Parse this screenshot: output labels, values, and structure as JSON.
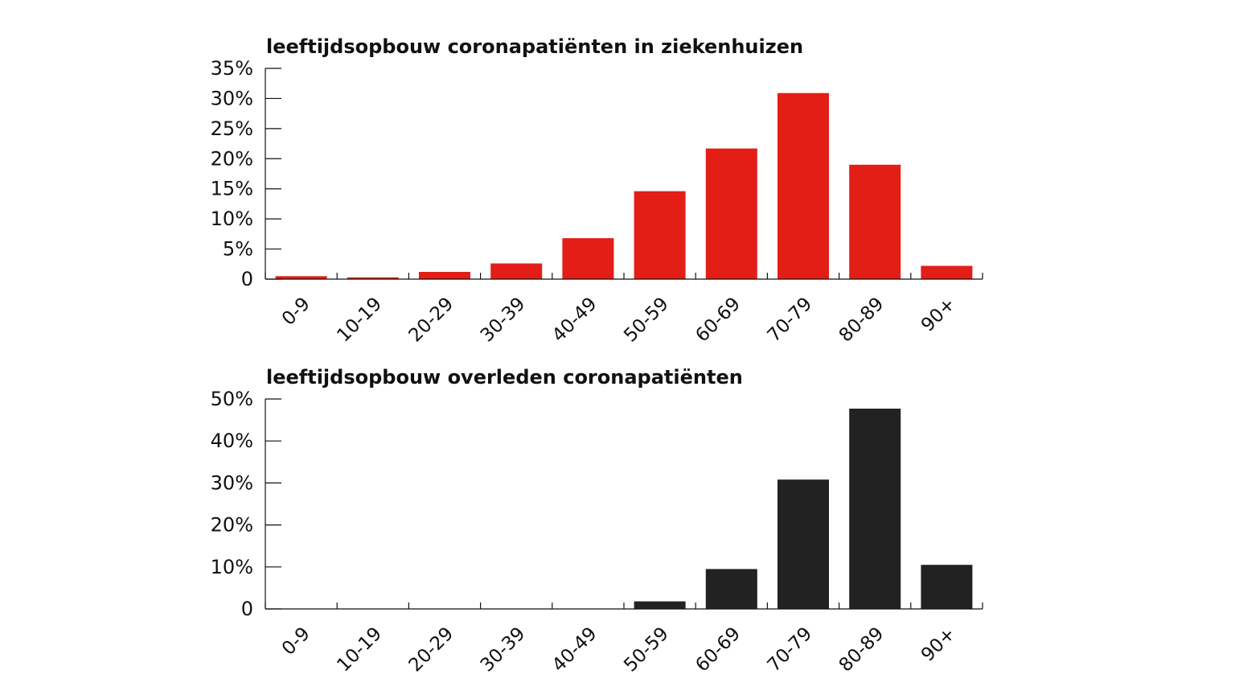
{
  "chart_data": [
    {
      "type": "bar",
      "title": "leeftijdsopbouw coronapatiënten in ziekenhuizen",
      "categories": [
        "0-9",
        "10-19",
        "20-29",
        "30-39",
        "40-49",
        "50-59",
        "60-69",
        "70-79",
        "80-89",
        "90+"
      ],
      "values": [
        0.5,
        0.3,
        1.2,
        2.6,
        6.8,
        14.6,
        21.7,
        30.9,
        19.0,
        2.2
      ],
      "unit": "%",
      "ylim": [
        0,
        35
      ],
      "yticks": [
        0,
        5,
        10,
        15,
        20,
        25,
        30,
        35
      ],
      "ytick_labels": [
        "0",
        "5%",
        "10%",
        "15%",
        "20%",
        "25%",
        "30%",
        "35%"
      ],
      "xlabel": "",
      "ylabel": "",
      "color": "#e31e16",
      "grid": false
    },
    {
      "type": "bar",
      "title": "leeftijdsopbouw overleden coronapatiënten",
      "categories": [
        "0-9",
        "10-19",
        "20-29",
        "30-39",
        "40-49",
        "50-59",
        "60-69",
        "70-79",
        "80-89",
        "90+"
      ],
      "values": [
        0,
        0,
        0,
        0,
        0.1,
        1.8,
        9.5,
        30.8,
        47.7,
        10.5
      ],
      "unit": "%",
      "ylim": [
        0,
        50
      ],
      "yticks": [
        0,
        10,
        20,
        30,
        40,
        50
      ],
      "ytick_labels": [
        "0",
        "10%",
        "20%",
        "30%",
        "40%",
        "50%"
      ],
      "xlabel": "",
      "ylabel": "",
      "color": "#222222",
      "grid": false
    }
  ]
}
